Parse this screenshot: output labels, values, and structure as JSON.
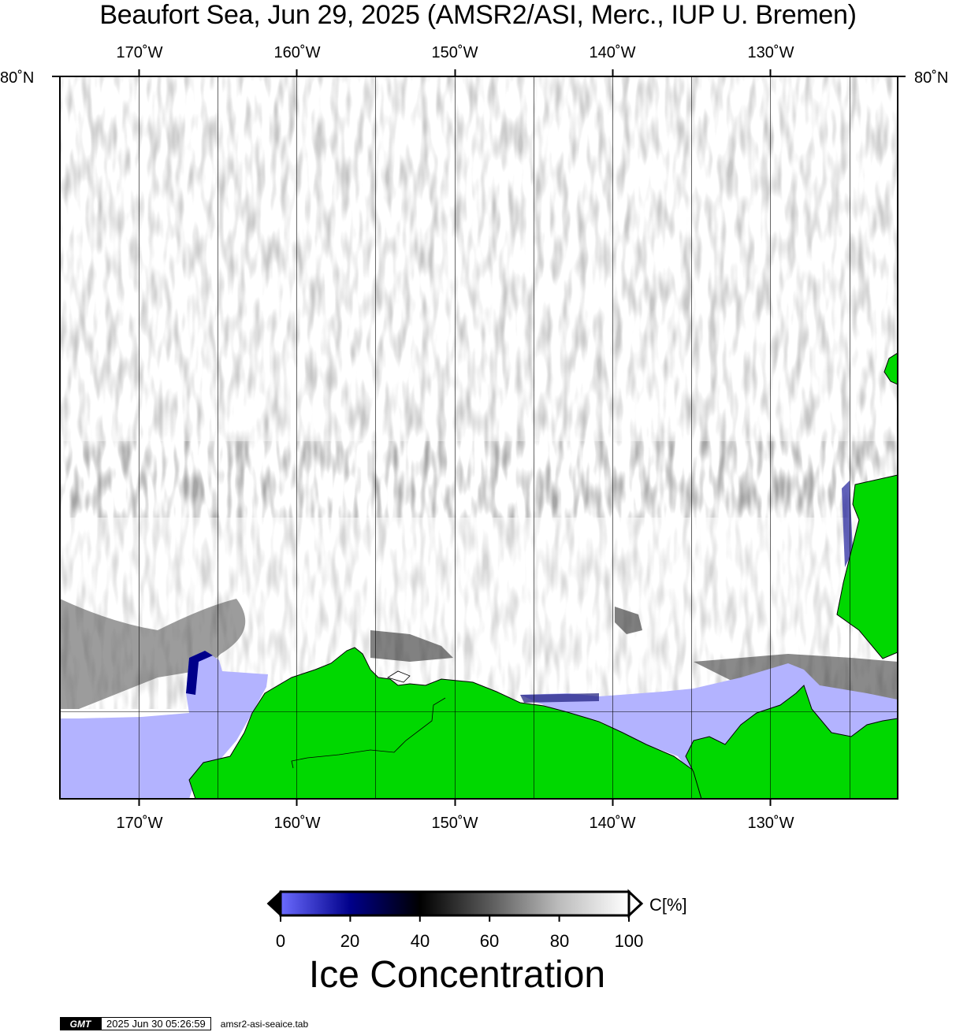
{
  "title": "Beaufort Sea, Jun 29, 2025 (AMSR2/ASI, Merc., IUP U. Bremen)",
  "longitude_ticks": [
    "170˚W",
    "160˚W",
    "150˚W",
    "140˚W",
    "130˚W"
  ],
  "latitude_tick": "80˚N",
  "colors": {
    "land": "#00d800",
    "open_water": "#b3b3ff",
    "frame": "#000000",
    "ice_high": "#ffffff",
    "ice_mid": "#000000",
    "ice_low": "#00008a"
  },
  "colorbar": {
    "unit": "C[%]",
    "labels": [
      "0",
      "20",
      "40",
      "60",
      "80",
      "100"
    ],
    "stops": [
      {
        "value": 0,
        "color": "#6b6bff"
      },
      {
        "value": 20,
        "color": "#00008a"
      },
      {
        "value": 40,
        "color": "#000000"
      },
      {
        "value": 60,
        "color": "#5a5a5a"
      },
      {
        "value": 80,
        "color": "#bcbcbc"
      },
      {
        "value": 100,
        "color": "#ffffff"
      }
    ]
  },
  "colorbar_title": "Ice Concentration",
  "footer": {
    "logo": "GMT",
    "timestamp": "2025 Jun 30 05:26:59",
    "script": "amsr2-asi-seaice.tab"
  }
}
